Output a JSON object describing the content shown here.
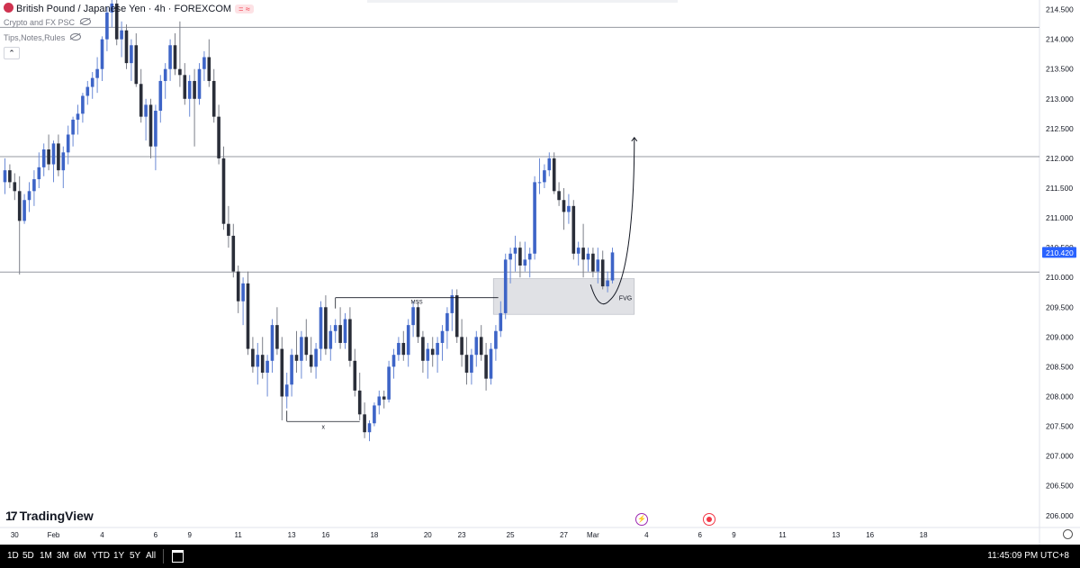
{
  "header": {
    "title": "British Pound / Japanese Yen · 4h · FOREXCOM",
    "indicator_1": "Crypto and FX PSC",
    "indicator_2": "Tips,Notes,Rules",
    "collapse_icon": "chevron-up-icon"
  },
  "brand": {
    "name": "TradingView"
  },
  "toolbar": {
    "ranges": [
      "1D",
      "5D",
      "1M",
      "3M",
      "6M",
      "YTD",
      "1Y",
      "5Y",
      "All"
    ],
    "calendar_icon": "calendar-icon",
    "clock": "11:45:09 PM UTC+8"
  },
  "colors": {
    "up": "#3d64c7",
    "down": "#2a2e39",
    "fvg": "#e0e1e5",
    "price_label": "#2962ff",
    "level_line": "#9598a1"
  },
  "chart_data": {
    "type": "candlestick",
    "title": "British Pound / Japanese Yen · 4h · FOREXCOM",
    "ylim": [
      205.8,
      214.66
    ],
    "y_ticks": [
      "214.500",
      "214.000",
      "213.500",
      "213.000",
      "212.500",
      "212.000",
      "211.500",
      "211.000",
      "210.500",
      "210.000",
      "209.500",
      "209.000",
      "208.500",
      "208.000",
      "207.500",
      "207.000",
      "206.500",
      "206.000"
    ],
    "x_ticks": [
      {
        "label": "30",
        "idx": 2
      },
      {
        "label": "Feb",
        "idx": 10
      },
      {
        "label": "4",
        "idx": 20
      },
      {
        "label": "6",
        "idx": 31
      },
      {
        "label": "9",
        "idx": 38
      },
      {
        "label": "11",
        "idx": 48
      },
      {
        "label": "13",
        "idx": 59
      },
      {
        "label": "16",
        "idx": 66
      },
      {
        "label": "18",
        "idx": 76
      },
      {
        "label": "20",
        "idx": 87
      },
      {
        "label": "23",
        "idx": 94
      },
      {
        "label": "25",
        "idx": 104
      },
      {
        "label": "27",
        "idx": 115
      },
      {
        "label": "Mar",
        "idx": 121
      },
      {
        "label": "4",
        "idx": 132
      },
      {
        "label": "6",
        "idx": 143
      },
      {
        "label": "9",
        "idx": 150
      },
      {
        "label": "11",
        "idx": 160
      },
      {
        "label": "13",
        "idx": 171
      },
      {
        "label": "16",
        "idx": 178
      },
      {
        "label": "18",
        "idx": 189
      }
    ],
    "last_price": "210.420",
    "last_price_value": 210.42,
    "horizontal_levels": [
      214.2,
      212.03,
      210.09
    ],
    "fvg_zone": {
      "label": "FVG",
      "from_idx": 100.5,
      "to_idx": 129.5,
      "top": 209.98,
      "bottom": 209.38
    },
    "mss_line": {
      "label": "MSS",
      "from_idx": 68,
      "to_idx": 101.5,
      "price": 209.66
    },
    "x_line": {
      "label": "x",
      "from_idx": 58,
      "to_idx": 73,
      "price": 207.58
    },
    "projection": {
      "from": [
        120.5,
        209.88
      ],
      "via": [
        123,
        209.62
      ],
      "to": [
        129.5,
        212.35
      ]
    },
    "candles": [
      [
        211.6,
        212.0,
        211.4,
        211.8
      ],
      [
        211.8,
        211.9,
        211.5,
        211.6
      ],
      [
        211.6,
        211.75,
        211.3,
        211.45
      ],
      [
        211.45,
        211.7,
        210.05,
        210.95
      ],
      [
        210.95,
        211.4,
        210.9,
        211.3
      ],
      [
        211.3,
        211.6,
        211.1,
        211.45
      ],
      [
        211.45,
        211.8,
        211.2,
        211.65
      ],
      [
        211.65,
        212.1,
        211.5,
        211.85
      ],
      [
        211.85,
        212.25,
        211.7,
        212.15
      ],
      [
        212.15,
        212.4,
        211.8,
        211.9
      ],
      [
        211.9,
        212.3,
        211.6,
        212.25
      ],
      [
        212.25,
        212.4,
        211.7,
        211.8
      ],
      [
        211.8,
        212.2,
        211.5,
        212.1
      ],
      [
        212.1,
        212.55,
        211.9,
        212.4
      ],
      [
        212.4,
        212.7,
        212.2,
        212.65
      ],
      [
        212.65,
        212.9,
        212.4,
        212.75
      ],
      [
        212.75,
        213.1,
        212.6,
        213.05
      ],
      [
        213.05,
        213.3,
        212.9,
        213.2
      ],
      [
        213.2,
        213.45,
        213.0,
        213.35
      ],
      [
        213.35,
        213.7,
        213.1,
        213.5
      ],
      [
        213.5,
        214.05,
        213.3,
        214.0
      ],
      [
        214.0,
        214.55,
        213.8,
        214.45
      ],
      [
        214.45,
        214.66,
        214.2,
        214.6
      ],
      [
        214.6,
        214.66,
        213.9,
        214.0
      ],
      [
        214.0,
        214.3,
        213.7,
        214.15
      ],
      [
        214.15,
        214.25,
        213.5,
        213.6
      ],
      [
        213.6,
        214.0,
        213.3,
        213.9
      ],
      [
        213.9,
        214.1,
        213.2,
        213.25
      ],
      [
        213.25,
        213.5,
        212.6,
        212.7
      ],
      [
        212.7,
        213.0,
        212.3,
        212.9
      ],
      [
        212.9,
        213.0,
        212.0,
        212.2
      ],
      [
        212.2,
        212.9,
        211.8,
        212.8
      ],
      [
        212.8,
        213.4,
        212.6,
        213.3
      ],
      [
        213.3,
        213.6,
        213.0,
        213.5
      ],
      [
        213.5,
        214.0,
        213.3,
        213.9
      ],
      [
        213.9,
        214.1,
        213.4,
        213.5
      ],
      [
        213.5,
        214.3,
        213.2,
        213.4
      ],
      [
        213.4,
        213.6,
        212.9,
        213.0
      ],
      [
        213.0,
        213.4,
        212.7,
        213.3
      ],
      [
        213.3,
        213.5,
        212.2,
        213.0
      ],
      [
        213.0,
        213.6,
        212.9,
        213.5
      ],
      [
        213.5,
        213.8,
        213.3,
        213.7
      ],
      [
        213.7,
        214.0,
        213.2,
        213.3
      ],
      [
        213.3,
        213.5,
        212.6,
        212.7
      ],
      [
        212.7,
        212.9,
        211.9,
        212.0
      ],
      [
        212.0,
        212.2,
        210.8,
        210.9
      ],
      [
        210.9,
        211.2,
        210.5,
        210.7
      ],
      [
        210.7,
        210.9,
        210.0,
        210.1
      ],
      [
        210.1,
        210.2,
        209.4,
        209.6
      ],
      [
        209.6,
        210.0,
        209.2,
        209.9
      ],
      [
        209.9,
        210.1,
        208.7,
        208.8
      ],
      [
        208.8,
        209.0,
        208.4,
        208.5
      ],
      [
        208.5,
        208.9,
        208.2,
        208.7
      ],
      [
        208.7,
        209.0,
        208.3,
        208.4
      ],
      [
        208.4,
        208.7,
        208.0,
        208.6
      ],
      [
        208.6,
        209.3,
        208.4,
        209.2
      ],
      [
        209.2,
        209.5,
        208.7,
        208.8
      ],
      [
        208.8,
        209.0,
        207.6,
        208.0
      ],
      [
        208.0,
        208.4,
        207.8,
        208.2
      ],
      [
        208.2,
        208.8,
        208.0,
        208.7
      ],
      [
        208.7,
        209.1,
        208.4,
        208.6
      ],
      [
        208.6,
        209.1,
        208.3,
        209.0
      ],
      [
        209.0,
        209.3,
        208.6,
        208.7
      ],
      [
        208.7,
        209.0,
        208.4,
        208.5
      ],
      [
        208.5,
        208.9,
        208.3,
        208.8
      ],
      [
        208.8,
        209.6,
        208.6,
        209.5
      ],
      [
        209.5,
        209.7,
        208.7,
        208.8
      ],
      [
        208.8,
        209.2,
        208.6,
        209.1
      ],
      [
        209.1,
        209.3,
        208.9,
        209.2
      ],
      [
        209.2,
        209.5,
        208.8,
        208.9
      ],
      [
        208.9,
        209.4,
        208.8,
        209.3
      ],
      [
        209.3,
        209.5,
        208.5,
        208.6
      ],
      [
        208.6,
        208.8,
        208.0,
        208.1
      ],
      [
        208.1,
        208.4,
        207.6,
        207.7
      ],
      [
        207.7,
        207.9,
        207.3,
        207.4
      ],
      [
        207.4,
        207.6,
        207.25,
        207.55
      ],
      [
        207.55,
        207.9,
        207.5,
        207.85
      ],
      [
        207.85,
        208.1,
        207.7,
        208.0
      ],
      [
        208.0,
        208.1,
        207.8,
        207.95
      ],
      [
        207.95,
        208.6,
        207.9,
        208.5
      ],
      [
        208.5,
        208.8,
        208.3,
        208.7
      ],
      [
        208.7,
        209.0,
        208.6,
        208.9
      ],
      [
        208.9,
        209.1,
        208.6,
        208.7
      ],
      [
        208.7,
        209.3,
        208.5,
        209.2
      ],
      [
        209.2,
        209.6,
        209.0,
        209.5
      ],
      [
        209.5,
        209.6,
        208.9,
        209.0
      ],
      [
        209.0,
        209.1,
        208.4,
        208.6
      ],
      [
        208.6,
        208.9,
        208.3,
        208.8
      ],
      [
        208.8,
        209.0,
        208.5,
        208.7
      ],
      [
        208.7,
        209.0,
        208.4,
        208.9
      ],
      [
        208.9,
        209.2,
        208.6,
        209.1
      ],
      [
        209.1,
        209.5,
        208.8,
        209.4
      ],
      [
        209.4,
        209.8,
        209.1,
        209.7
      ],
      [
        209.7,
        209.8,
        208.9,
        209.0
      ],
      [
        209.0,
        209.3,
        208.5,
        208.7
      ],
      [
        208.7,
        209.0,
        208.2,
        208.4
      ],
      [
        208.4,
        208.8,
        208.2,
        208.7
      ],
      [
        208.7,
        209.1,
        208.5,
        209.0
      ],
      [
        209.0,
        209.2,
        208.6,
        208.7
      ],
      [
        208.7,
        208.9,
        208.1,
        208.3
      ],
      [
        208.3,
        208.9,
        208.2,
        208.8
      ],
      [
        208.8,
        209.2,
        208.6,
        209.1
      ],
      [
        209.1,
        209.6,
        209.0,
        209.4
      ],
      [
        209.4,
        210.4,
        209.3,
        210.3
      ],
      [
        210.3,
        210.5,
        209.9,
        210.4
      ],
      [
        210.4,
        210.7,
        210.1,
        210.5
      ],
      [
        210.5,
        210.6,
        210.0,
        210.2
      ],
      [
        210.2,
        210.6,
        210.1,
        210.3
      ],
      [
        210.3,
        210.5,
        210.0,
        210.4
      ],
      [
        210.4,
        211.7,
        210.3,
        211.6
      ],
      [
        211.6,
        212.0,
        211.4,
        211.6
      ],
      [
        211.6,
        211.9,
        211.5,
        211.8
      ],
      [
        211.8,
        212.1,
        211.7,
        212.0
      ],
      [
        212.0,
        212.1,
        211.4,
        211.45
      ],
      [
        211.45,
        211.6,
        211.2,
        211.3
      ],
      [
        211.3,
        211.5,
        210.8,
        211.1
      ],
      [
        211.1,
        211.4,
        210.9,
        211.2
      ],
      [
        211.2,
        211.3,
        210.3,
        210.4
      ],
      [
        210.4,
        210.6,
        210.2,
        210.5
      ],
      [
        210.5,
        210.9,
        210.0,
        210.3
      ],
      [
        210.3,
        210.5,
        210.1,
        210.4
      ],
      [
        210.4,
        210.5,
        210.0,
        210.1
      ],
      [
        210.1,
        210.5,
        209.9,
        210.3
      ],
      [
        210.3,
        210.45,
        209.8,
        209.85
      ],
      [
        209.85,
        210.1,
        209.75,
        209.95
      ],
      [
        209.95,
        210.5,
        209.9,
        210.42
      ]
    ]
  }
}
